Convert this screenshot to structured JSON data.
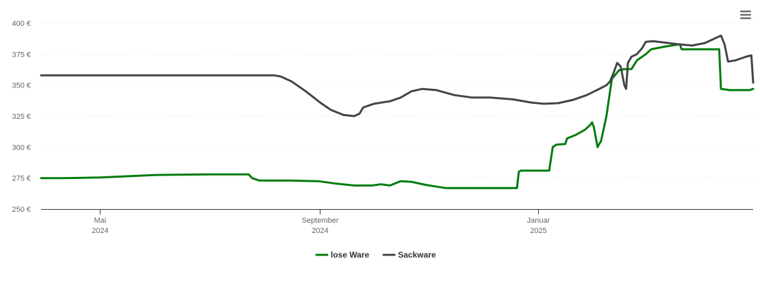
{
  "chart_data": {
    "type": "line",
    "title": "",
    "xlabel": "",
    "ylabel": "",
    "ylim": [
      250,
      400
    ],
    "yticks": [
      250,
      275,
      300,
      325,
      350,
      375,
      400
    ],
    "ytick_labels": [
      "250 €",
      "275 €",
      "300 €",
      "325 €",
      "350 €",
      "375 €",
      "400 €"
    ],
    "xlim": [
      "2024-03-29",
      "2025-05-01"
    ],
    "xticks": [
      {
        "date": "2024-05-01",
        "line1": "Mai",
        "line2": "2024"
      },
      {
        "date": "2024-09-01",
        "line1": "September",
        "line2": "2024"
      },
      {
        "date": "2025-01-01",
        "line1": "Januar",
        "line2": "2025"
      }
    ],
    "grid": true,
    "legend_position": "bottom-center",
    "series": [
      {
        "name": "lose Ware",
        "color": "#007b0c",
        "points": [
          [
            "2024-03-29",
            275
          ],
          [
            "2024-04-10",
            275
          ],
          [
            "2024-05-01",
            275.5
          ],
          [
            "2024-06-01",
            277.5
          ],
          [
            "2024-07-01",
            278
          ],
          [
            "2024-07-23",
            278
          ],
          [
            "2024-07-25",
            275
          ],
          [
            "2024-07-29",
            273
          ],
          [
            "2024-08-15",
            273
          ],
          [
            "2024-08-31",
            272.5
          ],
          [
            "2024-09-10",
            270.5
          ],
          [
            "2024-09-20",
            269
          ],
          [
            "2024-09-30",
            269
          ],
          [
            "2024-10-05",
            270
          ],
          [
            "2024-10-10",
            269
          ],
          [
            "2024-10-16",
            272.5
          ],
          [
            "2024-10-22",
            272
          ],
          [
            "2024-10-30",
            269.5
          ],
          [
            "2024-11-10",
            267
          ],
          [
            "2024-12-20",
            267
          ],
          [
            "2024-12-21",
            280
          ],
          [
            "2024-12-22",
            281
          ],
          [
            "2025-01-07",
            281
          ],
          [
            "2025-01-09",
            300
          ],
          [
            "2025-01-11",
            302
          ],
          [
            "2025-01-16",
            302.5
          ],
          [
            "2025-01-17",
            307
          ],
          [
            "2025-01-22",
            310
          ],
          [
            "2025-01-27",
            314
          ],
          [
            "2025-01-30",
            318
          ],
          [
            "2025-01-31",
            320
          ],
          [
            "2025-02-01",
            316
          ],
          [
            "2025-02-03",
            300
          ],
          [
            "2025-02-05",
            305
          ],
          [
            "2025-02-08",
            325
          ],
          [
            "2025-02-11",
            355
          ],
          [
            "2025-02-15",
            362
          ],
          [
            "2025-02-18",
            363
          ],
          [
            "2025-02-22",
            363
          ],
          [
            "2025-02-25",
            370
          ],
          [
            "2025-03-02",
            375
          ],
          [
            "2025-03-05",
            379
          ],
          [
            "2025-03-12",
            381
          ],
          [
            "2025-03-21",
            383
          ],
          [
            "2025-03-22",
            379
          ],
          [
            "2025-04-12",
            379
          ],
          [
            "2025-04-13",
            347
          ],
          [
            "2025-04-18",
            346
          ],
          [
            "2025-04-29",
            346
          ],
          [
            "2025-05-01",
            347
          ]
        ]
      },
      {
        "name": "Sackware",
        "color": "#434348",
        "points": [
          [
            "2024-03-29",
            358
          ],
          [
            "2024-05-01",
            358
          ],
          [
            "2024-07-01",
            358
          ],
          [
            "2024-08-06",
            358
          ],
          [
            "2024-08-10",
            357
          ],
          [
            "2024-08-16",
            353
          ],
          [
            "2024-08-24",
            345
          ],
          [
            "2024-09-01",
            336
          ],
          [
            "2024-09-07",
            330
          ],
          [
            "2024-09-14",
            326
          ],
          [
            "2024-09-20",
            325
          ],
          [
            "2024-09-23",
            327
          ],
          [
            "2024-09-25",
            332
          ],
          [
            "2024-10-01",
            335
          ],
          [
            "2024-10-10",
            337
          ],
          [
            "2024-10-16",
            340
          ],
          [
            "2024-10-22",
            345
          ],
          [
            "2024-10-28",
            347
          ],
          [
            "2024-11-05",
            346
          ],
          [
            "2024-11-15",
            342
          ],
          [
            "2024-11-25",
            340
          ],
          [
            "2024-12-05",
            340
          ],
          [
            "2024-12-18",
            338.5
          ],
          [
            "2024-12-28",
            336
          ],
          [
            "2025-01-04",
            335
          ],
          [
            "2025-01-12",
            335.5
          ],
          [
            "2025-01-20",
            338
          ],
          [
            "2025-01-28",
            342
          ],
          [
            "2025-02-04",
            347
          ],
          [
            "2025-02-08",
            350
          ],
          [
            "2025-02-10",
            353
          ],
          [
            "2025-02-12",
            360
          ],
          [
            "2025-02-14",
            368
          ],
          [
            "2025-02-16",
            365
          ],
          [
            "2025-02-18",
            350
          ],
          [
            "2025-02-19",
            347
          ],
          [
            "2025-02-20",
            368
          ],
          [
            "2025-02-22",
            373
          ],
          [
            "2025-02-25",
            375
          ],
          [
            "2025-02-28",
            380
          ],
          [
            "2025-03-02",
            385
          ],
          [
            "2025-03-06",
            385.5
          ],
          [
            "2025-03-12",
            384.5
          ],
          [
            "2025-03-20",
            383
          ],
          [
            "2025-03-28",
            382
          ],
          [
            "2025-04-04",
            384
          ],
          [
            "2025-04-10",
            388
          ],
          [
            "2025-04-13",
            390
          ],
          [
            "2025-04-15",
            383
          ],
          [
            "2025-04-17",
            369
          ],
          [
            "2025-04-21",
            370
          ],
          [
            "2025-04-27",
            373
          ],
          [
            "2025-04-30",
            374
          ],
          [
            "2025-05-01",
            352
          ]
        ]
      }
    ]
  }
}
